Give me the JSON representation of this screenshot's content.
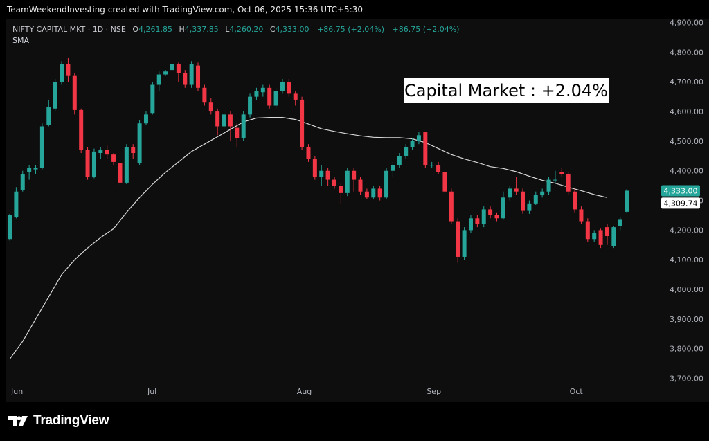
{
  "attribution": "TeamWeekendInvesting created with TradingView.com, Oct 06, 2025 15:36 UTC+5:30",
  "legend": {
    "symbol": "NIFTY CAPITAL MKT · 1D · NSE",
    "open_label": "O",
    "open": "4,261.85",
    "high_label": "H",
    "high": "4,337.85",
    "low_label": "L",
    "low": "4,260.20",
    "close_label": "C",
    "close": "4,333.00",
    "change": "+86.75 (+2.04%)",
    "change2": "+86.75 (+2.04%)",
    "indicator": "SMA"
  },
  "annotation": "Capital Market : +2.04%",
  "branding": "TradingView",
  "colors": {
    "up": "#26a69a",
    "down": "#f23645",
    "sma": "#d9d9d9",
    "axis_text": "#b2b5be"
  },
  "chart_data": {
    "type": "candlestick",
    "y_range": [
      3650,
      4920
    ],
    "y_ticks": [
      "4,900.00",
      "4,800.00",
      "4,700.00",
      "4,600.00",
      "4,500.00",
      "4,400.00",
      "4,300.00",
      "4,200.00",
      "4,100.00",
      "4,000.00",
      "3,900.00",
      "3,800.00",
      "3,700.00"
    ],
    "y_tick_values": [
      4900,
      4800,
      4700,
      4600,
      4500,
      4400,
      4300,
      4200,
      4100,
      4000,
      3900,
      3800,
      3700
    ],
    "x_labels": [
      {
        "label": "Jun",
        "index": 0
      },
      {
        "label": "Jul",
        "index": 21
      },
      {
        "label": "Aug",
        "index": 44
      },
      {
        "label": "Sep",
        "index": 64
      },
      {
        "label": "Oct",
        "index": 86
      }
    ],
    "last_close_label": "4,333.00",
    "last_close": 4333,
    "sma_label": "4,309.74",
    "sma_last": 4309.74,
    "candles": [
      [
        4170,
        4250,
        4165,
        4255
      ],
      [
        4245,
        4330,
        4240,
        4345
      ],
      [
        4335,
        4390,
        4330,
        4400
      ],
      [
        4395,
        4410,
        4370,
        4420
      ],
      [
        4405,
        4410,
        4390,
        4420
      ],
      [
        4410,
        4550,
        4405,
        4560
      ],
      [
        4555,
        4615,
        4550,
        4640
      ],
      [
        4610,
        4700,
        4600,
        4710
      ],
      [
        4700,
        4760,
        4690,
        4770
      ],
      [
        4760,
        4720,
        4700,
        4780
      ],
      [
        4720,
        4605,
        4590,
        4730
      ],
      [
        4605,
        4470,
        4460,
        4610
      ],
      [
        4470,
        4380,
        4370,
        4480
      ],
      [
        4380,
        4465,
        4375,
        4475
      ],
      [
        4460,
        4470,
        4440,
        4480
      ],
      [
        4470,
        4455,
        4440,
        4485
      ],
      [
        4455,
        4430,
        4420,
        4460
      ],
      [
        4425,
        4360,
        4350,
        4430
      ],
      [
        4360,
        4480,
        4355,
        4490
      ],
      [
        4480,
        4460,
        4440,
        4490
      ],
      [
        4425,
        4560,
        4420,
        4570
      ],
      [
        4560,
        4590,
        4555,
        4600
      ],
      [
        4595,
        4690,
        4590,
        4700
      ],
      [
        4690,
        4725,
        4670,
        4735
      ],
      [
        4725,
        4735,
        4720,
        4740
      ],
      [
        4740,
        4760,
        4730,
        4770
      ],
      [
        4760,
        4730,
        4700,
        4765
      ],
      [
        4730,
        4690,
        4680,
        4740
      ],
      [
        4690,
        4760,
        4680,
        4770
      ],
      [
        4755,
        4680,
        4670,
        4765
      ],
      [
        4680,
        4630,
        4620,
        4690
      ],
      [
        4630,
        4600,
        4590,
        4645
      ],
      [
        4600,
        4550,
        4520,
        4610
      ],
      [
        4550,
        4590,
        4540,
        4600
      ],
      [
        4590,
        4550,
        4500,
        4600
      ],
      [
        4545,
        4510,
        4480,
        4560
      ],
      [
        4510,
        4590,
        4500,
        4600
      ],
      [
        4590,
        4650,
        4580,
        4660
      ],
      [
        4650,
        4670,
        4640,
        4680
      ],
      [
        4665,
        4680,
        4650,
        4690
      ],
      [
        4680,
        4620,
        4610,
        4690
      ],
      [
        4620,
        4670,
        4610,
        4680
      ],
      [
        4670,
        4700,
        4660,
        4710
      ],
      [
        4700,
        4660,
        4650,
        4710
      ],
      [
        4660,
        4640,
        4620,
        4670
      ],
      [
        4640,
        4480,
        4470,
        4650
      ],
      [
        4480,
        4440,
        4430,
        4490
      ],
      [
        4440,
        4380,
        4370,
        4450
      ],
      [
        4380,
        4400,
        4350,
        4420
      ],
      [
        4400,
        4370,
        4350,
        4410
      ],
      [
        4370,
        4350,
        4340,
        4380
      ],
      [
        4350,
        4325,
        4290,
        4360
      ],
      [
        4325,
        4400,
        4315,
        4410
      ],
      [
        4400,
        4370,
        4330,
        4410
      ],
      [
        4370,
        4330,
        4320,
        4380
      ],
      [
        4330,
        4310,
        4305,
        4340
      ],
      [
        4310,
        4340,
        4305,
        4350
      ],
      [
        4340,
        4310,
        4300,
        4350
      ],
      [
        4310,
        4400,
        4305,
        4410
      ],
      [
        4400,
        4420,
        4380,
        4430
      ],
      [
        4420,
        4450,
        4410,
        4460
      ],
      [
        4450,
        4480,
        4440,
        4490
      ],
      [
        4480,
        4500,
        4470,
        4510
      ],
      [
        4500,
        4520,
        4490,
        4530
      ],
      [
        4530,
        4420,
        4410,
        4530
      ],
      [
        4420,
        4420,
        4410,
        4430
      ],
      [
        4420,
        4395,
        4390,
        4430
      ],
      [
        4395,
        4330,
        4320,
        4400
      ],
      [
        4330,
        4230,
        4220,
        4340
      ],
      [
        4230,
        4110,
        4090,
        4240
      ],
      [
        4110,
        4200,
        4100,
        4210
      ],
      [
        4200,
        4240,
        4190,
        4250
      ],
      [
        4240,
        4220,
        4210,
        4250
      ],
      [
        4220,
        4270,
        4210,
        4280
      ],
      [
        4270,
        4250,
        4240,
        4280
      ],
      [
        4250,
        4240,
        4230,
        4260
      ],
      [
        4240,
        4310,
        4235,
        4330
      ],
      [
        4310,
        4340,
        4300,
        4350
      ],
      [
        4340,
        4330,
        4320,
        4380
      ],
      [
        4330,
        4265,
        4255,
        4340
      ],
      [
        4265,
        4290,
        4255,
        4300
      ],
      [
        4290,
        4320,
        4285,
        4330
      ],
      [
        4320,
        4330,
        4310,
        4340
      ],
      [
        4330,
        4370,
        4320,
        4380
      ],
      [
        4370,
        4370,
        4360,
        4400
      ],
      [
        4395,
        4390,
        4380,
        4410
      ],
      [
        4390,
        4330,
        4320,
        4395
      ],
      [
        4330,
        4270,
        4260,
        4340
      ],
      [
        4270,
        4230,
        4220,
        4280
      ],
      [
        4230,
        4170,
        4160,
        4240
      ],
      [
        4170,
        4190,
        4160,
        4200
      ],
      [
        4200,
        4150,
        4140,
        4205
      ],
      [
        4210,
        4180,
        4150,
        4220
      ],
      [
        4145,
        4210,
        4140,
        4215
      ],
      [
        4215,
        4235,
        4200,
        4245
      ],
      [
        4262,
        4333,
        4260,
        4338
      ]
    ],
    "sma_points": [
      [
        0,
        3765
      ],
      [
        2,
        3825
      ],
      [
        4,
        3900
      ],
      [
        6,
        3975
      ],
      [
        8,
        4050
      ],
      [
        10,
        4100
      ],
      [
        12,
        4140
      ],
      [
        14,
        4175
      ],
      [
        16,
        4205
      ],
      [
        18,
        4260
      ],
      [
        20,
        4310
      ],
      [
        22,
        4355
      ],
      [
        24,
        4395
      ],
      [
        26,
        4430
      ],
      [
        28,
        4465
      ],
      [
        30,
        4490
      ],
      [
        32,
        4515
      ],
      [
        34,
        4540
      ],
      [
        36,
        4565
      ],
      [
        38,
        4578
      ],
      [
        40,
        4580
      ],
      [
        42,
        4580
      ],
      [
        44,
        4573
      ],
      [
        46,
        4558
      ],
      [
        48,
        4542
      ],
      [
        50,
        4533
      ],
      [
        52,
        4525
      ],
      [
        54,
        4518
      ],
      [
        56,
        4513
      ],
      [
        58,
        4512
      ],
      [
        60,
        4512
      ],
      [
        62,
        4508
      ],
      [
        64,
        4495
      ],
      [
        66,
        4475
      ],
      [
        68,
        4455
      ],
      [
        70,
        4440
      ],
      [
        72,
        4428
      ],
      [
        74,
        4414
      ],
      [
        76,
        4408
      ],
      [
        78,
        4397
      ],
      [
        80,
        4382
      ],
      [
        82,
        4368
      ],
      [
        84,
        4358
      ],
      [
        86,
        4345
      ],
      [
        88,
        4333
      ],
      [
        90,
        4320
      ],
      [
        92,
        4310
      ]
    ]
  }
}
